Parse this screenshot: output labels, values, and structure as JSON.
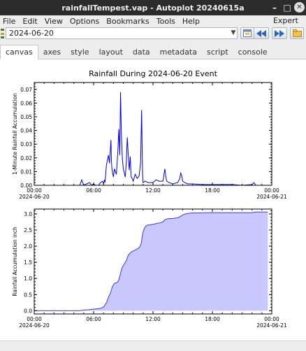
{
  "window": {
    "title": "rainfallTempest.vap - Autoplot 20240615a"
  },
  "menu": {
    "items": [
      "File",
      "Edit",
      "View",
      "Options",
      "Bookmarks",
      "Tools",
      "Help"
    ],
    "expert": "Expert"
  },
  "address": {
    "value": "2024-06-20"
  },
  "tabs": [
    "canvas",
    "axes",
    "style",
    "layout",
    "data",
    "metadata",
    "script",
    "console"
  ],
  "active_tab": "canvas",
  "colors": {
    "line": "#0000ee",
    "fill": "#c8c8ff",
    "fill_edge": "#3c3cdc",
    "axis": "#000000"
  },
  "chart_data": [
    {
      "type": "line",
      "title": "Rainfall During 2024-06-20 Event",
      "ylabel": "1-Minute Rainfall Accumulation",
      "xlim_hours": [
        0,
        24
      ],
      "ylim": [
        0,
        0.075
      ],
      "yticks": [
        "0.00",
        "0.01",
        "0.02",
        "0.03",
        "0.04",
        "0.05",
        "0.06",
        "0.07"
      ],
      "xticks": [
        {
          "time": "00:00",
          "date": "2024-06-20"
        },
        {
          "time": "06:00",
          "date": ""
        },
        {
          "time": "12:00",
          "date": ""
        },
        {
          "time": "18:00",
          "date": ""
        },
        {
          "time": "00:00",
          "date": "2024-06-21"
        }
      ],
      "x": [
        0,
        4.6,
        4.8,
        5.0,
        5.3,
        5.6,
        5.8,
        6.0,
        6.2,
        6.5,
        6.7,
        6.9,
        7.0,
        7.1,
        7.15,
        7.3,
        7.5,
        7.6,
        7.75,
        7.8,
        7.85,
        8.0,
        8.1,
        8.3,
        8.45,
        8.55,
        8.65,
        8.72,
        8.8,
        8.9,
        9.0,
        9.2,
        9.3,
        9.4,
        9.5,
        9.6,
        9.7,
        9.8,
        9.9,
        10.0,
        10.2,
        10.4,
        10.6,
        10.75,
        10.85,
        10.9,
        10.95,
        11.0,
        11.2,
        11.5,
        12.0,
        12.3,
        12.6,
        13.0,
        13.2,
        13.3,
        13.4,
        13.6,
        14.0,
        14.5,
        14.7,
        14.8,
        14.9,
        15.0,
        15.2,
        15.5,
        16.0,
        17.0,
        18.0,
        20.0,
        21.0,
        22.0,
        22.2,
        22.4,
        24.0
      ],
      "values": [
        0,
        0,
        0.004,
        0,
        0.001,
        0.002,
        0,
        0.001,
        0,
        0,
        0.002,
        0.003,
        0.001,
        0.004,
        0.002,
        0.015,
        0.022,
        0.016,
        0.033,
        0.018,
        0.012,
        0.006,
        0.012,
        0.008,
        0.025,
        0.041,
        0.022,
        0.068,
        0.038,
        0.02,
        0.012,
        0.006,
        0.017,
        0.035,
        0.022,
        0.011,
        0.021,
        0.006,
        0.005,
        0.003,
        0.008,
        0.005,
        0.007,
        0.017,
        0.055,
        0.03,
        0.008,
        0.002,
        0.003,
        0.002,
        0.002,
        0.004,
        0.003,
        0.003,
        0.012,
        0.006,
        0.003,
        0.002,
        0.001,
        0.002,
        0.005,
        0.009,
        0.007,
        0.003,
        0.002,
        0.001,
        0.001,
        0.0005,
        0.0005,
        0.0005,
        0,
        0.0005,
        0.002,
        0,
        0
      ]
    },
    {
      "type": "area",
      "title": "",
      "ylabel": "Rainfall Accumulation inch",
      "xlim_hours": [
        0,
        24
      ],
      "ylim": [
        -0.1,
        3.15
      ],
      "yticks": [
        "0.0",
        "0.5",
        "1.0",
        "1.5",
        "2.0",
        "2.5",
        "3.0"
      ],
      "xticks": [
        {
          "time": "00:00",
          "date": "2024-06-20"
        },
        {
          "time": "06:00",
          "date": ""
        },
        {
          "time": "12:00",
          "date": ""
        },
        {
          "time": "18:00",
          "date": ""
        },
        {
          "time": "00:00",
          "date": "2024-06-21"
        }
      ],
      "x": [
        0,
        4.6,
        5.0,
        5.5,
        6.0,
        6.6,
        7.0,
        7.3,
        7.5,
        7.7,
        7.9,
        8.1,
        8.4,
        8.55,
        8.75,
        8.9,
        9.1,
        9.3,
        9.5,
        9.8,
        10.2,
        10.6,
        10.8,
        11.0,
        11.2,
        11.4,
        12.0,
        12.5,
        13.0,
        13.2,
        13.5,
        14.0,
        14.5,
        14.8,
        15.0,
        15.3,
        15.6,
        16.0,
        18.0,
        20.0,
        22.0,
        22.3,
        23.6
      ],
      "values": [
        0,
        0,
        0.02,
        0.03,
        0.05,
        0.07,
        0.11,
        0.25,
        0.42,
        0.55,
        0.75,
        0.85,
        0.88,
        0.95,
        1.2,
        1.35,
        1.45,
        1.55,
        1.72,
        1.82,
        1.88,
        1.95,
        2.08,
        2.45,
        2.6,
        2.65,
        2.68,
        2.71,
        2.75,
        2.82,
        2.85,
        2.86,
        2.88,
        2.93,
        2.97,
        3.0,
        3.02,
        3.03,
        3.04,
        3.04,
        3.04,
        3.06,
        3.06
      ]
    }
  ]
}
